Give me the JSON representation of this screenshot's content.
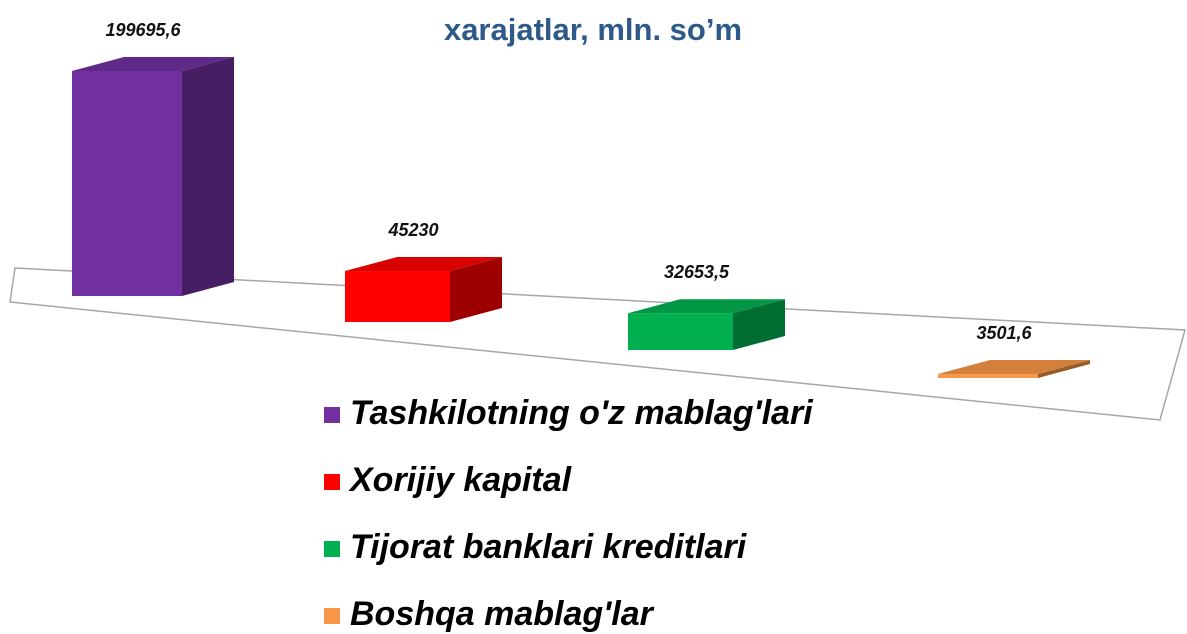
{
  "chart_data": {
    "type": "bar3d",
    "title": "xarajatlar, mln. so’m",
    "categories": [
      "Tashkilotning o'z mablag'lari",
      "Xorijiy kapital",
      "Tijorat banklari kreditlari",
      "Boshqa mablag'lar"
    ],
    "values": [
      199695.6,
      45230,
      32653.5,
      3501.6
    ],
    "value_labels": [
      "199695,6",
      "45230",
      "32653,5",
      "3501,6"
    ],
    "colors": [
      "#7030a0",
      "#ff0000",
      "#00b050",
      "#f79646"
    ]
  }
}
